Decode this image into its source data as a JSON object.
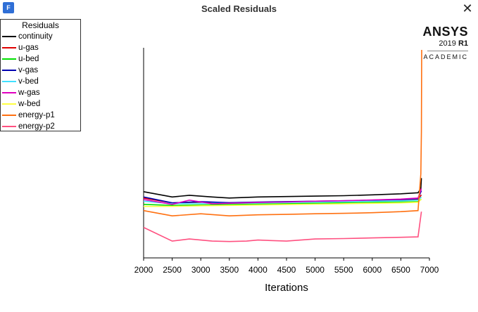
{
  "window": {
    "title": "Scaled Residuals",
    "app_icon_glyph": "F",
    "close_glyph": "✕"
  },
  "brand": {
    "name": "ANSYS",
    "version_year": "2019",
    "version_release": "R1",
    "edition": "ACADEMIC"
  },
  "legend": {
    "title": "Residuals",
    "items": [
      {
        "label": "continuity",
        "color": "#000000"
      },
      {
        "label": "u-gas",
        "color": "#e00000"
      },
      {
        "label": "u-bed",
        "color": "#00e000"
      },
      {
        "label": "v-gas",
        "color": "#0000b0"
      },
      {
        "label": "v-bed",
        "color": "#40e0ff"
      },
      {
        "label": "w-gas",
        "color": "#e000c0"
      },
      {
        "label": "w-bed",
        "color": "#ffff40"
      },
      {
        "label": "energy-p1",
        "color": "#ff7010"
      },
      {
        "label": "energy-p2",
        "color": "#ff5080"
      }
    ]
  },
  "chart_data": {
    "type": "line",
    "xlabel": "Iterations",
    "x_ticks": [
      2000,
      2500,
      3000,
      3500,
      4000,
      4500,
      5000,
      5500,
      6000,
      6500,
      7000
    ],
    "xlim": [
      2000,
      7000
    ],
    "ylim": [
      0,
      1
    ],
    "y_ticks_shown": false,
    "series": [
      {
        "name": "continuity",
        "color": "#000000",
        "x": [
          2000,
          2500,
          2800,
          3200,
          3500,
          4000,
          4500,
          5000,
          5500,
          6000,
          6500,
          6800,
          6850,
          6860
        ],
        "y": [
          0.315,
          0.29,
          0.298,
          0.29,
          0.285,
          0.29,
          0.292,
          0.294,
          0.296,
          0.3,
          0.305,
          0.31,
          0.33,
          0.38
        ]
      },
      {
        "name": "u-gas",
        "color": "#e00000",
        "x": [
          2000,
          2500,
          3000,
          3500,
          4000,
          4500,
          5000,
          5500,
          6000,
          6500,
          6800,
          6860
        ],
        "y": [
          0.285,
          0.262,
          0.262,
          0.262,
          0.264,
          0.266,
          0.268,
          0.27,
          0.272,
          0.275,
          0.278,
          0.3
        ]
      },
      {
        "name": "u-bed",
        "color": "#00e000",
        "x": [
          2000,
          2500,
          3000,
          3500,
          4000,
          4500,
          5000,
          5500,
          6000,
          6500,
          6800,
          6860
        ],
        "y": [
          0.255,
          0.25,
          0.252,
          0.254,
          0.256,
          0.258,
          0.26,
          0.262,
          0.264,
          0.266,
          0.268,
          0.28
        ]
      },
      {
        "name": "v-gas",
        "color": "#0000b0",
        "x": [
          2000,
          2500,
          3000,
          3500,
          4000,
          4500,
          5000,
          5500,
          6000,
          6500,
          6800,
          6860
        ],
        "y": [
          0.29,
          0.262,
          0.268,
          0.263,
          0.266,
          0.268,
          0.27,
          0.272,
          0.275,
          0.278,
          0.282,
          0.32
        ]
      },
      {
        "name": "v-bed",
        "color": "#40e0ff",
        "x": [
          2000,
          2500,
          3000,
          3500,
          4000,
          4500,
          5000,
          5500,
          6000,
          6500,
          6800,
          6860
        ],
        "y": [
          0.27,
          0.258,
          0.26,
          0.26,
          0.262,
          0.264,
          0.266,
          0.268,
          0.27,
          0.272,
          0.275,
          0.29
        ]
      },
      {
        "name": "w-gas",
        "color": "#e000c0",
        "x": [
          2000,
          2500,
          2800,
          3200,
          3500,
          4000,
          4500,
          5000,
          5500,
          6000,
          6500,
          6800,
          6860
        ],
        "y": [
          0.278,
          0.255,
          0.275,
          0.258,
          0.26,
          0.264,
          0.266,
          0.27,
          0.272,
          0.276,
          0.28,
          0.285,
          0.33
        ]
      },
      {
        "name": "w-bed",
        "color": "#ffff40",
        "x": [
          2000,
          2500,
          3000,
          3500,
          4000,
          4500,
          5000,
          5500,
          6000,
          6500,
          6800,
          6860
        ],
        "y": [
          0.245,
          0.245,
          0.248,
          0.25,
          0.252,
          0.254,
          0.256,
          0.258,
          0.26,
          0.262,
          0.265,
          0.28
        ]
      },
      {
        "name": "energy-p1",
        "color": "#ff7010",
        "x": [
          2000,
          2500,
          3000,
          3500,
          4000,
          4500,
          5000,
          5500,
          6000,
          6500,
          6800,
          6850,
          6860,
          6865
        ],
        "y": [
          0.225,
          0.2,
          0.21,
          0.2,
          0.205,
          0.207,
          0.21,
          0.212,
          0.215,
          0.22,
          0.225,
          0.4,
          0.6,
          0.99
        ]
      },
      {
        "name": "energy-p2",
        "color": "#ff5080",
        "x": [
          2000,
          2500,
          2800,
          3200,
          3500,
          3800,
          4000,
          4500,
          5000,
          5500,
          6000,
          6500,
          6800,
          6860
        ],
        "y": [
          0.145,
          0.08,
          0.09,
          0.08,
          0.078,
          0.08,
          0.085,
          0.08,
          0.09,
          0.092,
          0.095,
          0.098,
          0.1,
          0.22
        ]
      }
    ]
  }
}
